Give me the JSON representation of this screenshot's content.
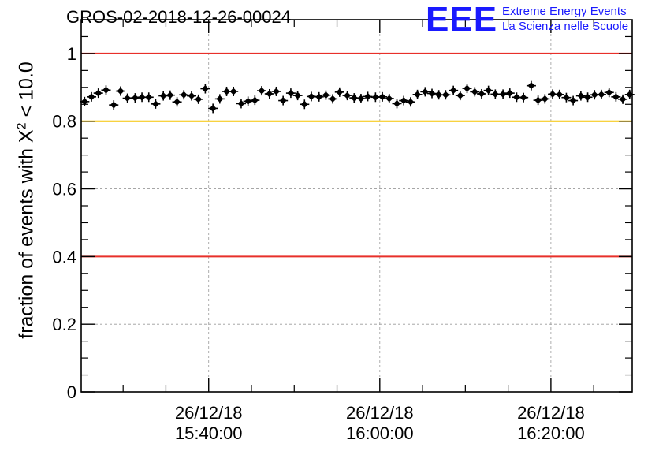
{
  "chart_data": {
    "type": "scatter",
    "title": "GROS-02-2018-12-26-00024",
    "ylabel": {
      "prefix": "fraction of events with ",
      "symbol": "X",
      "sup": "2",
      "suffix": " < 10.0"
    },
    "xlabel": "",
    "x_ticks": [
      {
        "date": "26/12/18",
        "time": "15:40:00"
      },
      {
        "date": "26/12/18",
        "time": "16:00:00"
      },
      {
        "date": "26/12/18",
        "time": "16:20:00"
      }
    ],
    "x_tick_minutes": [
      40,
      60,
      80
    ],
    "xlim_minutes": [
      25.1,
      89.5
    ],
    "y_ticks": [
      "0",
      "0.2",
      "0.4",
      "0.6",
      "0.8",
      "1"
    ],
    "ylim": [
      0,
      1.1
    ],
    "grid": true,
    "reference_lines": [
      {
        "y": 1.0,
        "color": "#e8302a"
      },
      {
        "y": 0.8,
        "color": "#f5c400"
      },
      {
        "y": 0.4,
        "color": "#e8302a"
      }
    ],
    "marker_color": "#000000",
    "series": [
      {
        "x_minutes": [
          25.5,
          26.3,
          27.1,
          28.0,
          28.9,
          29.7,
          30.5,
          31.4,
          32.2,
          33.0,
          33.8,
          34.7,
          35.5,
          36.3,
          37.1,
          38.0,
          38.8,
          39.6,
          40.5,
          41.3,
          42.1,
          42.9,
          43.8,
          44.6,
          45.4,
          46.2,
          47.1,
          47.9,
          48.7,
          49.6,
          50.4,
          51.2,
          52.0,
          52.9,
          53.7,
          54.5,
          55.3,
          56.2,
          57.0,
          57.8,
          58.6,
          59.5,
          60.3,
          61.1,
          62.0,
          62.8,
          63.6,
          64.4,
          65.3,
          66.1,
          66.9,
          67.7,
          68.6,
          69.4,
          70.2,
          71.1,
          71.9,
          72.7,
          73.5,
          74.4,
          75.2,
          76.0,
          76.8,
          77.7,
          78.5,
          79.3,
          80.2,
          81.0,
          81.8,
          82.6,
          83.5,
          84.3,
          85.1,
          85.9,
          86.8,
          87.6,
          88.4,
          89.2
        ],
        "values": [
          0.858,
          0.872,
          0.883,
          0.892,
          0.848,
          0.889,
          0.868,
          0.869,
          0.871,
          0.871,
          0.851,
          0.875,
          0.877,
          0.857,
          0.878,
          0.875,
          0.865,
          0.896,
          0.838,
          0.866,
          0.888,
          0.888,
          0.852,
          0.859,
          0.862,
          0.89,
          0.881,
          0.888,
          0.861,
          0.883,
          0.876,
          0.85,
          0.873,
          0.872,
          0.877,
          0.866,
          0.886,
          0.876,
          0.869,
          0.867,
          0.873,
          0.871,
          0.872,
          0.867,
          0.852,
          0.861,
          0.857,
          0.879,
          0.887,
          0.882,
          0.878,
          0.878,
          0.891,
          0.876,
          0.897,
          0.887,
          0.881,
          0.891,
          0.88,
          0.88,
          0.883,
          0.871,
          0.87,
          0.905,
          0.862,
          0.866,
          0.88,
          0.879,
          0.87,
          0.861,
          0.875,
          0.871,
          0.878,
          0.879,
          0.885,
          0.872,
          0.865,
          0.879
        ]
      }
    ]
  },
  "logo": {
    "mark": "EEE",
    "line1": "Extreme Energy Events",
    "line2": "La Scienza nelle Scuole"
  }
}
